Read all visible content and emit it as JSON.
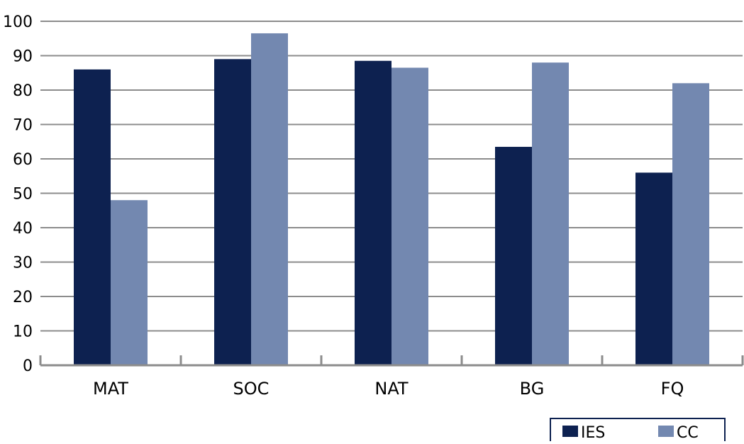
{
  "chart_data": {
    "type": "bar",
    "title": "",
    "xlabel": "",
    "ylabel": "",
    "categories": [
      "MAT",
      "SOC",
      "NAT",
      "BG",
      "FQ"
    ],
    "series": [
      {
        "name": "IES",
        "values": [
          86,
          89,
          88.5,
          63.5,
          56
        ],
        "color": "#0d2150"
      },
      {
        "name": "CC",
        "values": [
          48,
          96.5,
          86.5,
          88,
          82
        ],
        "color": "#7388b0"
      }
    ],
    "ylim": [
      0,
      100
    ],
    "yticks": [
      0,
      10,
      20,
      30,
      40,
      50,
      60,
      70,
      80,
      90,
      100
    ],
    "grid": true,
    "legend_position": "bottom-right",
    "axis_color": "#8c8c8c"
  }
}
